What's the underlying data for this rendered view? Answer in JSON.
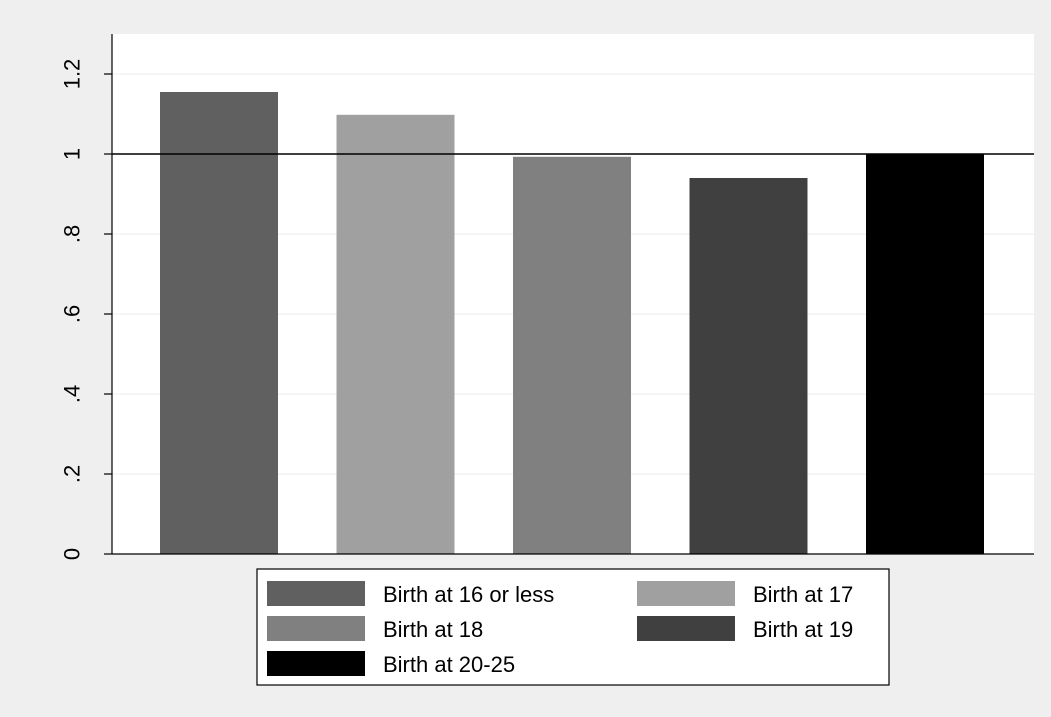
{
  "chart_data": {
    "type": "bar",
    "title": "",
    "xlabel": "",
    "ylabel": "",
    "ylim": [
      0,
      1.3
    ],
    "yticks": [
      {
        "value": 0,
        "label": "0"
      },
      {
        "value": 0.2,
        "label": ".2"
      },
      {
        "value": 0.4,
        "label": ".4"
      },
      {
        "value": 0.6,
        "label": ".6"
      },
      {
        "value": 0.8,
        "label": ".8"
      },
      {
        "value": 1.0,
        "label": "1"
      },
      {
        "value": 1.2,
        "label": "1.2"
      }
    ],
    "reference_line": 1.0,
    "grid": true,
    "legend_position": "bottom",
    "series": [
      {
        "name": "Birth at 16 or less",
        "value": 1.155,
        "color": "#606060"
      },
      {
        "name": "Birth at 17",
        "value": 1.098,
        "color": "#a0a0a0"
      },
      {
        "name": "Birth at 18",
        "value": 0.993,
        "color": "#808080"
      },
      {
        "name": "Birth at 19",
        "value": 0.94,
        "color": "#404040"
      },
      {
        "name": "Birth at 20-25",
        "value": 1.0,
        "color": "#000000"
      }
    ],
    "colors": {
      "outer_background": "#efefef",
      "plot_background": "#ffffff",
      "grid": "#e8eef0",
      "axis": "#000000"
    }
  }
}
